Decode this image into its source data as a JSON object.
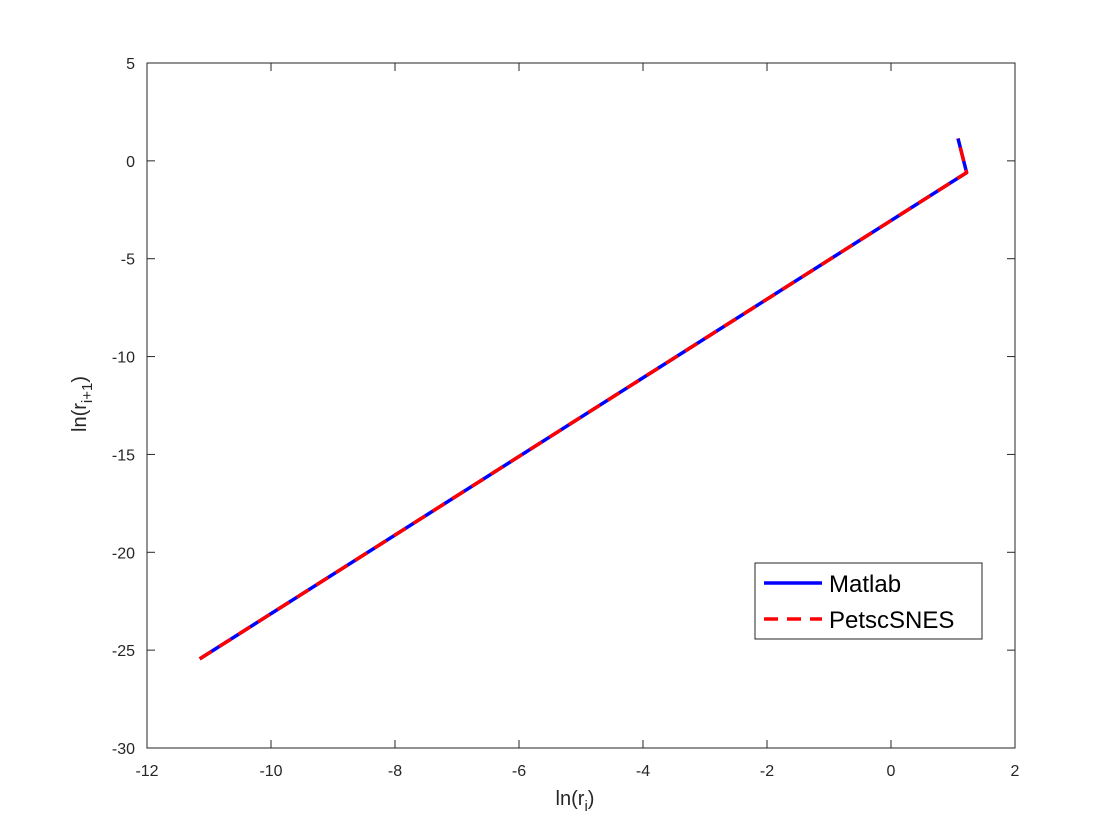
{
  "chart_data": {
    "type": "line",
    "xlabel": {
      "base": "ln(r",
      "sub": "i",
      "close": ")"
    },
    "ylabel": {
      "base": "ln(r",
      "sub": "i+1",
      "close": ")"
    },
    "xlim": [
      -12,
      2
    ],
    "ylim": [
      -30,
      5
    ],
    "xticks": [
      -12,
      -10,
      -8,
      -6,
      -4,
      -2,
      0,
      2
    ],
    "yticks": [
      -30,
      -25,
      -20,
      -15,
      -10,
      -5,
      0,
      5
    ],
    "xtick_labels": [
      "-12",
      "-10",
      "-8",
      "-6",
      "-4",
      "-2",
      "0",
      "2"
    ],
    "ytick_labels": [
      "-30",
      "-25",
      "-20",
      "-15",
      "-10",
      "-5",
      "0",
      "5"
    ],
    "grid": false,
    "legend_position": "lower-right",
    "series": [
      {
        "name": "Matlab",
        "color": "#0000ff",
        "dash": "solid",
        "x": [
          -11.15,
          1.22,
          1.08
        ],
        "y": [
          -25.45,
          -0.6,
          1.15
        ]
      },
      {
        "name": "PetscSNES",
        "color": "#ff0000",
        "dash": "dashed",
        "x": [
          -11.15,
          1.22,
          1.08
        ],
        "y": [
          -25.45,
          -0.6,
          1.15
        ]
      }
    ]
  }
}
